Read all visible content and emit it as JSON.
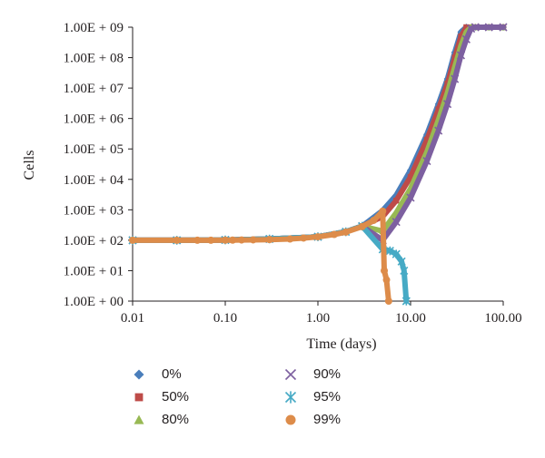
{
  "chart_data": {
    "type": "scatter",
    "xlabel": "Time (days)",
    "ylabel": "Cells",
    "x_scale": "log",
    "y_scale": "log",
    "xlim": [
      0.01,
      100
    ],
    "ylim": [
      1,
      1000000000
    ],
    "x_ticks": [
      {
        "value": 0.01,
        "label": "0.01"
      },
      {
        "value": 0.1,
        "label": "0.10"
      },
      {
        "value": 1,
        "label": "1.00"
      },
      {
        "value": 10,
        "label": "10.00"
      },
      {
        "value": 100,
        "label": "100.00"
      }
    ],
    "y_ticks": [
      {
        "value": 1,
        "label": "1.00E + 00"
      },
      {
        "value": 10,
        "label": "1.00E + 01"
      },
      {
        "value": 100,
        "label": "1.00E + 02"
      },
      {
        "value": 1000,
        "label": "1.00E + 03"
      },
      {
        "value": 10000,
        "label": "1.00E + 04"
      },
      {
        "value": 100000,
        "label": "1.00E + 05"
      },
      {
        "value": 1000000,
        "label": "1.00E + 06"
      },
      {
        "value": 10000000,
        "label": "1.00E + 07"
      },
      {
        "value": 100000000,
        "label": "1.00E + 08"
      },
      {
        "value": 1000000000,
        "label": "1.00E + 09"
      }
    ],
    "grid": false,
    "legend_position": "bottom",
    "series": [
      {
        "name": "0%",
        "marker": "diamond",
        "color": "#4a7ebb",
        "x": [
          0.01,
          0.03,
          0.1,
          0.3,
          1,
          2,
          3,
          5,
          7,
          10,
          15,
          20,
          25,
          30,
          35,
          40,
          50,
          70,
          100
        ],
        "y": [
          100,
          100,
          102,
          110,
          130,
          190,
          290,
          950,
          3000,
          20000,
          300000,
          3000000,
          20000000,
          150000000,
          700000000,
          1000000000,
          1000000000,
          1000000000,
          1000000000
        ]
      },
      {
        "name": "50%",
        "marker": "square",
        "color": "#be4b48",
        "x": [
          0.01,
          0.03,
          0.1,
          0.3,
          1,
          2,
          3,
          5,
          7,
          10,
          15,
          20,
          25,
          30,
          35,
          40,
          50,
          70,
          100
        ],
        "y": [
          100,
          100,
          102,
          110,
          130,
          190,
          290,
          600,
          2000,
          12000,
          200000,
          2000000,
          14000000,
          100000000,
          500000000,
          1000000000,
          1000000000,
          1000000000,
          1000000000
        ]
      },
      {
        "name": "80%",
        "marker": "triangle",
        "color": "#98b954",
        "x": [
          0.01,
          0.03,
          0.1,
          0.3,
          1,
          2,
          3,
          5,
          7,
          10,
          15,
          20,
          25,
          30,
          35,
          40,
          45,
          50,
          70,
          100
        ],
        "y": [
          100,
          100,
          102,
          110,
          130,
          190,
          290,
          200,
          800,
          5000,
          80000,
          900000,
          7000000,
          50000000,
          250000000,
          700000000,
          1000000000,
          1000000000,
          1000000000,
          1000000000
        ]
      },
      {
        "name": "90%",
        "marker": "x",
        "color": "#7d60a0",
        "x": [
          0.01,
          0.03,
          0.1,
          0.3,
          1,
          2,
          3,
          5,
          7,
          10,
          15,
          20,
          25,
          30,
          35,
          40,
          45,
          50,
          70,
          100
        ],
        "y": [
          100,
          100,
          102,
          110,
          130,
          190,
          290,
          100,
          400,
          2500,
          40000,
          400000,
          3000000,
          20000000,
          120000000,
          400000000,
          900000000,
          1000000000,
          1000000000,
          1000000000
        ]
      },
      {
        "name": "95%",
        "marker": "star",
        "color": "#46aac5",
        "x": [
          0.01,
          0.03,
          0.1,
          0.3,
          1,
          2,
          3,
          5,
          6,
          7,
          8,
          8.5,
          9
        ],
        "y": [
          100,
          100,
          102,
          110,
          130,
          190,
          290,
          50,
          45,
          35,
          20,
          10,
          1
        ]
      },
      {
        "name": "99%",
        "marker": "circle",
        "color": "#dd8c4a",
        "x": [
          0.01,
          0.03,
          0.05,
          0.07,
          0.1,
          0.12,
          0.15,
          0.2,
          0.3,
          0.5,
          0.7,
          1,
          1.5,
          2,
          3,
          4,
          5,
          5.2,
          5.5,
          5.8
        ],
        "y": [
          100,
          100,
          100,
          100,
          101,
          101,
          102,
          103,
          105,
          110,
          118,
          130,
          155,
          185,
          280,
          450,
          900,
          10,
          5,
          1
        ]
      }
    ]
  }
}
